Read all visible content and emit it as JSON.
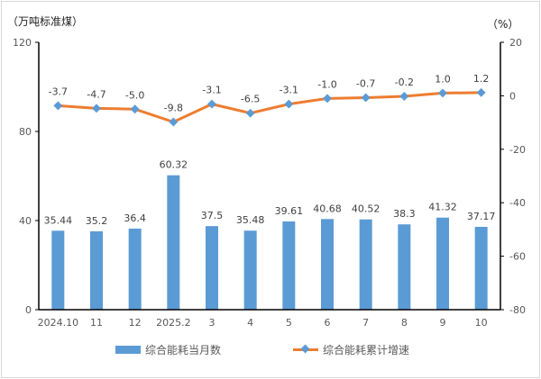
{
  "chart_data": {
    "type": "bar+line",
    "left_unit": "（万吨标准煤）",
    "right_unit": "（%）",
    "categories": [
      "2024.10",
      "11",
      "12",
      "2025.2",
      "3",
      "4",
      "5",
      "6",
      "7",
      "8",
      "9",
      "10"
    ],
    "left_axis": {
      "range": [
        0,
        120
      ],
      "ticks": [
        "0",
        "40",
        "80",
        "120"
      ]
    },
    "right_axis": {
      "range": [
        -80,
        20
      ],
      "ticks": [
        "-80",
        "-60",
        "-40",
        "-20",
        "0",
        "20"
      ]
    },
    "series": [
      {
        "name": "综合能耗当月数",
        "type": "bar",
        "axis": "left",
        "color": "#5b9bd5",
        "values": [
          35.44,
          35.2,
          36.4,
          60.32,
          37.5,
          35.48,
          39.61,
          40.68,
          40.52,
          38.3,
          41.32,
          37.17
        ],
        "labels": [
          "35.44",
          "35.2",
          "36.4",
          "60.32",
          "37.5",
          "35.48",
          "39.61",
          "40.68",
          "40.52",
          "38.3",
          "41.32",
          "37.17"
        ]
      },
      {
        "name": "综合能耗累计增速",
        "type": "line",
        "axis": "right",
        "color": "#ed7d31",
        "marker_color": "#5b9bd5",
        "values": [
          -3.7,
          -4.7,
          -5.0,
          -9.8,
          -3.1,
          -6.5,
          -3.1,
          -1.0,
          -0.7,
          -0.2,
          1.0,
          1.2
        ],
        "labels": [
          "-3.7",
          "-4.7",
          "-5.0",
          "-9.8",
          "-3.1",
          "-6.5",
          "-3.1",
          "-1.0",
          "-0.7",
          "-0.2",
          "1.0",
          "1.2"
        ]
      }
    ],
    "grid": false,
    "legend": "bottom"
  }
}
